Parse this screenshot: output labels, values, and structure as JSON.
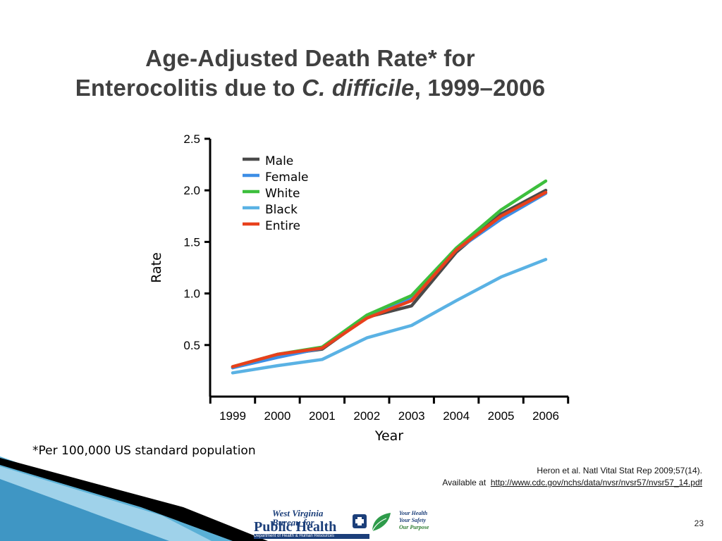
{
  "slide": {
    "title_line1": "Age-Adjusted Death Rate* for",
    "title_line2_prefix": "Enterocolitis due to ",
    "title_line2_italic": "C. difficile",
    "title_line2_suffix": ", 1999–2006",
    "footnote": "*Per 100,000 US standard population",
    "citation_line1": "Heron et al. Natl Vital Stat Rep 2009;57(14).",
    "citation_available": "Available at",
    "citation_link": "http://www.cdc.gov/nchs/data/nvsr/nvsr57/nvsr57_14.pdf",
    "page_number": "23"
  },
  "logo": {
    "line1": "West Virginia",
    "line2": "Bureau for",
    "line3": "Public Health",
    "dept": "Department of Health & Human Resources",
    "slogan_line1": "Your Health",
    "slogan_line2": "Your Safety",
    "slogan_line3": "Our Purpose"
  },
  "chart_data": {
    "type": "line",
    "title": "",
    "xlabel": "Year",
    "ylabel": "Rate",
    "x": [
      "1999",
      "2000",
      "2001",
      "2002",
      "2003",
      "2004",
      "2005",
      "2006"
    ],
    "yticks": [
      "0.5",
      "1.0",
      "1.5",
      "2.0",
      "2.5"
    ],
    "ytick_values": [
      0.5,
      1.0,
      1.5,
      2.0,
      2.5
    ],
    "ylim": [
      0,
      2.5
    ],
    "grid": false,
    "legend_position": "top-left",
    "series": [
      {
        "name": "Male",
        "color": "#4a4a4a",
        "values": [
          0.28,
          0.4,
          0.46,
          0.77,
          0.88,
          1.4,
          1.77,
          2.0
        ]
      },
      {
        "name": "Female",
        "color": "#3d8ee6",
        "values": [
          0.28,
          0.38,
          0.47,
          0.78,
          0.96,
          1.42,
          1.72,
          1.97
        ]
      },
      {
        "name": "White",
        "color": "#3dbf3d",
        "values": [
          0.29,
          0.41,
          0.48,
          0.79,
          0.98,
          1.44,
          1.81,
          2.09
        ]
      },
      {
        "name": "Black",
        "color": "#5ab2e4",
        "values": [
          0.23,
          0.3,
          0.36,
          0.57,
          0.69,
          0.93,
          1.16,
          1.33
        ]
      },
      {
        "name": "Entire",
        "color": "#e8401c",
        "values": [
          0.29,
          0.41,
          0.47,
          0.76,
          0.93,
          1.42,
          1.75,
          1.98
        ]
      }
    ]
  }
}
